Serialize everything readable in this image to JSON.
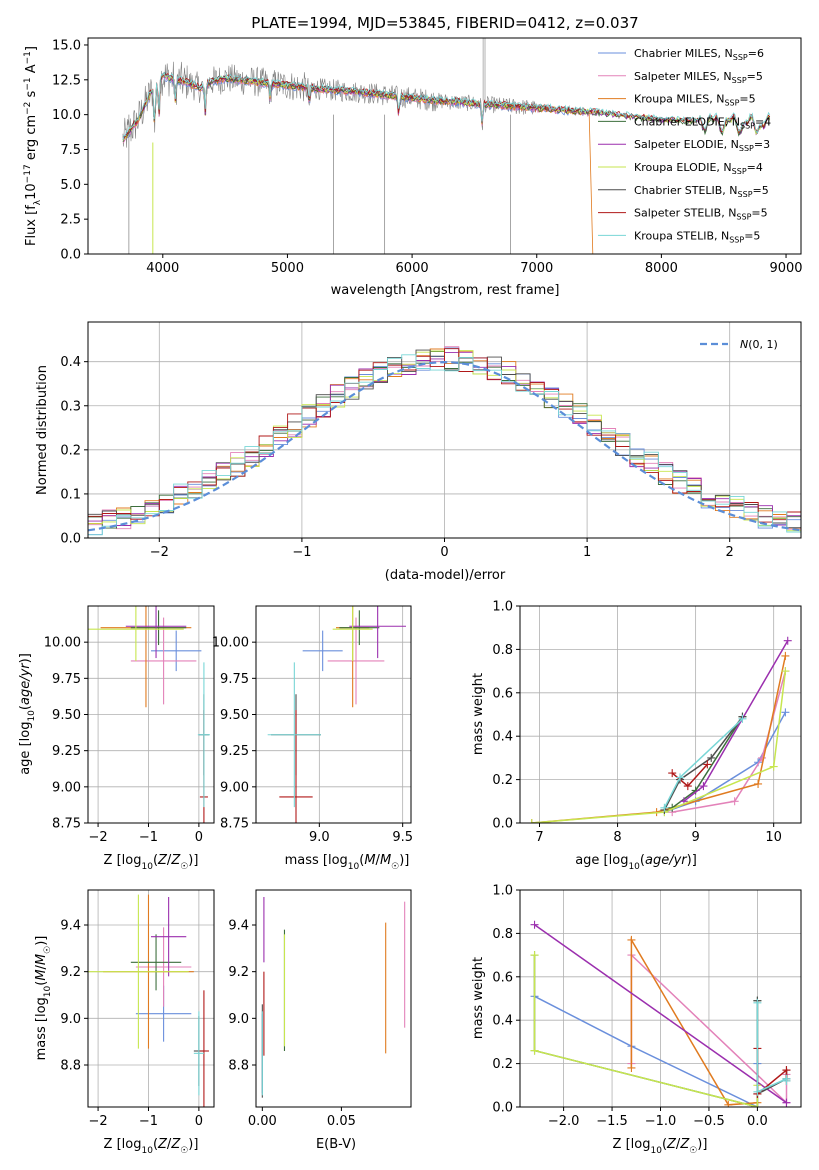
{
  "figure": {
    "title": "PLATE=1994, MJD=53845, FIBERID=0412, z=0.037"
  },
  "colors": {
    "Chabrier MILES": "#6a8fdc",
    "Salpeter MILES": "#e382b9",
    "Kroupa MILES": "#e07b20",
    "Chabrier ELODIE": "#3c6e3c",
    "Salpeter ELODIE": "#9b2fae",
    "Kroupa ELODIE": "#c7e64f",
    "Chabrier STELIB": "#4d4d4d",
    "Salpeter STELIB": "#b01818",
    "Kroupa STELIB": "#78d6d6"
  },
  "chart_data": [
    {
      "id": "spectrum",
      "type": "line",
      "title": "PLATE=1994, MJD=53845, FIBERID=0412, z=0.037",
      "xlabel": "wavelength [Angstrom, rest frame]",
      "ylabel": "Flux [f_λ10^-17 erg cm^-2 s^-1 A^-1]",
      "xlim": [
        3400,
        9120
      ],
      "ylim": [
        0,
        15.5
      ],
      "xticks": [
        4000,
        5000,
        6000,
        7000,
        8000,
        9000
      ],
      "yticks": [
        0.0,
        2.5,
        5.0,
        7.5,
        10.0,
        12.5,
        15.0
      ],
      "ytick_labels": [
        "0.0",
        "2.5",
        "5.0",
        "7.5",
        "10.0",
        "12.5",
        "15.0"
      ],
      "legend": "top-right",
      "legend_entries": [
        "Chabrier MILES, N_SSP=6",
        "Salpeter MILES, N_SSP=5",
        "Kroupa MILES, N_SSP=5",
        "Chabrier ELODIE, N_SSP=4",
        "Salpeter ELODIE, N_SSP=3",
        "Kroupa ELODIE, N_SSP=4",
        "Chabrier STELIB, N_SSP=5",
        "Salpeter STELIB, N_SSP=5",
        "Kroupa STELIB, N_SSP=5"
      ],
      "legend_labels": [
        {
          "pre": "Chabrier MILES, N",
          "sub": "SSP",
          "post": "=6"
        },
        {
          "pre": "Salpeter MILES, N",
          "sub": "SSP",
          "post": "=5"
        },
        {
          "pre": "Kroupa MILES, N",
          "sub": "SSP",
          "post": "=5"
        },
        {
          "pre": "Chabrier ELODIE, N",
          "sub": "SSP",
          "post": "=4"
        },
        {
          "pre": "Salpeter ELODIE, N",
          "sub": "SSP",
          "post": "=3"
        },
        {
          "pre": "Kroupa ELODIE, N",
          "sub": "SSP",
          "post": "=4"
        },
        {
          "pre": "Chabrier STELIB, N",
          "sub": "SSP",
          "post": "=5"
        },
        {
          "pre": "Salpeter STELIB, N",
          "sub": "SSP",
          "post": "=5"
        },
        {
          "pre": "Kroupa STELIB, N",
          "sub": "SSP",
          "post": "=5"
        }
      ],
      "data_x": [
        3680,
        3800,
        3900,
        4000,
        4100,
        4200,
        4300,
        4400,
        4500,
        4700,
        5000,
        5300,
        5600,
        5900,
        6200,
        6500,
        6800,
        7100,
        7400,
        7700,
        8000,
        8300,
        8600,
        8870
      ],
      "data_y": [
        8.2,
        9.6,
        11.5,
        12.8,
        12.5,
        12.3,
        11.9,
        12.4,
        12.6,
        12.4,
        12.1,
        11.8,
        11.6,
        11.3,
        11.0,
        10.8,
        10.6,
        10.4,
        10.2,
        9.9,
        9.6,
        9.5,
        9.3,
        9.2
      ]
    },
    {
      "id": "residuals",
      "type": "line",
      "xlabel": "(data-model)/error",
      "ylabel": "Normed distribution",
      "xlim": [
        -2.5,
        2.5
      ],
      "ylim": [
        0,
        0.49
      ],
      "xticks": [
        -2,
        -1,
        0,
        1,
        2
      ],
      "xtick_labels": [
        "−2",
        "−1",
        "0",
        "1",
        "2"
      ],
      "yticks": [
        0.0,
        0.1,
        0.2,
        0.3,
        0.4
      ],
      "ytick_labels": [
        "0.0",
        "0.1",
        "0.2",
        "0.3",
        "0.4"
      ],
      "legend": "top-right",
      "legend_label": "N(0,1)",
      "series_model": "normal pdf, mean 0, sigma 1"
    },
    {
      "id": "age_vs_Z",
      "type": "scatter",
      "xlabel": "Z [log10(Z/Z☉)]",
      "ylabel": "age [log10(age/yr)]",
      "xlim": [
        -2.2,
        0.3
      ],
      "ylim": [
        8.75,
        10.25
      ],
      "xticks": [
        -2,
        -1,
        0
      ],
      "xtick_labels": [
        "−2",
        "−1",
        "0"
      ],
      "yticks": [
        8.75,
        9.0,
        9.25,
        9.5,
        9.75,
        10.0
      ],
      "ytick_labels": [
        "8.75",
        "9.00",
        "9.25",
        "9.50",
        "9.75",
        "10.00"
      ],
      "points": [
        {
          "m": "Chabrier MILES",
          "x": -0.45,
          "xerr": 0.5,
          "y": 9.94,
          "yerr": 0.14
        },
        {
          "m": "Salpeter MILES",
          "x": -0.7,
          "xerr": 0.65,
          "y": 9.87,
          "yerr": 0.3
        },
        {
          "m": "Kroupa MILES",
          "x": -1.05,
          "xerr": 0.9,
          "y": 10.1,
          "yerr": 0.55
        },
        {
          "m": "Chabrier ELODIE",
          "x": -0.8,
          "xerr": 0.55,
          "y": 10.1,
          "yerr": 0.12
        },
        {
          "m": "Salpeter ELODIE",
          "x": -0.85,
          "xerr": 0.6,
          "y": 10.11,
          "yerr": 0.22
        },
        {
          "m": "Kroupa ELODIE",
          "x": -1.25,
          "xerr": 0.95,
          "y": 10.09,
          "yerr": 0.22
        },
        {
          "m": "Chabrier STELIB",
          "x": 0.1,
          "xerr": 0.1,
          "y": 9.36,
          "yerr": 0.28
        },
        {
          "m": "Salpeter STELIB",
          "x": 0.1,
          "xerr": 0.08,
          "y": 8.93,
          "yerr": 0.6
        },
        {
          "m": "Kroupa STELIB",
          "x": 0.1,
          "xerr": 0.12,
          "y": 9.36,
          "yerr": 0.5
        }
      ]
    },
    {
      "id": "age_vs_mass",
      "type": "scatter",
      "xlabel": "mass [log10(M/M☉)]",
      "ylabel": "",
      "xlim": [
        8.62,
        9.55
      ],
      "ylim": [
        8.75,
        10.25
      ],
      "xticks": [
        9.0,
        9.5
      ],
      "xtick_labels": [
        "9.0",
        "9.5"
      ],
      "yticks": [
        8.75,
        9.0,
        9.25,
        9.5,
        9.75,
        10.0
      ],
      "ytick_labels": [
        "8.75",
        "9.00",
        "9.25",
        "9.50",
        "9.75",
        "10.00"
      ],
      "points": [
        {
          "m": "Chabrier MILES",
          "x": 9.02,
          "xerr": 0.12,
          "y": 9.94,
          "yerr": 0.14
        },
        {
          "m": "Salpeter MILES",
          "x": 9.22,
          "xerr": 0.17,
          "y": 9.87,
          "yerr": 0.3
        },
        {
          "m": "Kroupa MILES",
          "x": 9.2,
          "xerr": 0.1,
          "y": 10.1,
          "yerr": 0.55
        },
        {
          "m": "Chabrier ELODIE",
          "x": 9.24,
          "xerr": 0.12,
          "y": 10.1,
          "yerr": 0.12
        },
        {
          "m": "Salpeter ELODIE",
          "x": 9.35,
          "xerr": 0.17,
          "y": 10.11,
          "yerr": 0.22
        },
        {
          "m": "Kroupa ELODIE",
          "x": 9.2,
          "xerr": 0.12,
          "y": 10.09,
          "yerr": 0.22
        },
        {
          "m": "Chabrier STELIB",
          "x": 8.86,
          "xerr": 0.15,
          "y": 9.36,
          "yerr": 0.28
        },
        {
          "m": "Salpeter STELIB",
          "x": 8.86,
          "xerr": 0.1,
          "y": 8.93,
          "yerr": 0.6
        },
        {
          "m": "Kroupa STELIB",
          "x": 8.85,
          "xerr": 0.16,
          "y": 9.36,
          "yerr": 0.5
        }
      ]
    },
    {
      "id": "weight_vs_age",
      "type": "line",
      "xlabel": "age [log10(age/yr)]",
      "ylabel": "mass weight",
      "xlim": [
        6.75,
        10.35
      ],
      "ylim": [
        0,
        1.0
      ],
      "xticks": [
        7,
        8,
        9,
        10
      ],
      "yticks": [
        0.0,
        0.2,
        0.4,
        0.6,
        0.8,
        1.0
      ],
      "ytick_labels": [
        "0.0",
        "0.2",
        "0.4",
        "0.6",
        "0.8",
        "1.0"
      ],
      "series": [
        {
          "m": "Chabrier MILES",
          "x": [
            8.6,
            9.0,
            9.8,
            10.15
          ],
          "y": [
            0.05,
            0.1,
            0.28,
            0.51
          ]
        },
        {
          "m": "Salpeter MILES",
          "x": [
            8.7,
            9.5,
            9.85,
            10.15
          ],
          "y": [
            0.05,
            0.1,
            0.3,
            0.7
          ]
        },
        {
          "m": "Kroupa MILES",
          "x": [
            6.9,
            8.5,
            9.8,
            10.15
          ],
          "y": [
            0.0,
            0.05,
            0.18,
            0.77
          ]
        },
        {
          "m": "Chabrier ELODIE",
          "x": [
            8.7,
            9.0,
            9.6
          ],
          "y": [
            0.07,
            0.15,
            0.49
          ]
        },
        {
          "m": "Salpeter ELODIE",
          "x": [
            8.85,
            9.1,
            10.18
          ],
          "y": [
            0.1,
            0.17,
            0.84
          ]
        },
        {
          "m": "Kroupa ELODIE",
          "x": [
            6.9,
            8.6,
            10.0,
            10.15
          ],
          "y": [
            0.0,
            0.05,
            0.26,
            0.7
          ]
        },
        {
          "m": "Chabrier STELIB",
          "x": [
            8.6,
            8.8,
            9.2,
            9.6
          ],
          "y": [
            0.06,
            0.2,
            0.3,
            0.49
          ]
        },
        {
          "m": "Salpeter STELIB",
          "x": [
            8.7,
            8.9,
            9.15
          ],
          "y": [
            0.23,
            0.17,
            0.27
          ]
        },
        {
          "m": "Kroupa STELIB",
          "x": [
            8.6,
            8.8,
            9.6
          ],
          "y": [
            0.07,
            0.21,
            0.48
          ]
        }
      ]
    },
    {
      "id": "mass_vs_Z",
      "type": "scatter",
      "xlabel": "Z [log10(Z/Z☉)]",
      "ylabel": "mass [log10(M/M☉)]",
      "xlim": [
        -2.2,
        0.3
      ],
      "ylim": [
        8.62,
        9.55
      ],
      "xticks": [
        -2,
        -1,
        0
      ],
      "xtick_labels": [
        "−2",
        "−1",
        "0"
      ],
      "yticks": [
        8.8,
        9.0,
        9.2,
        9.4
      ],
      "ytick_labels": [
        "8.8",
        "9.0",
        "9.2",
        "9.4"
      ],
      "points": [
        {
          "m": "Chabrier MILES",
          "x": -0.7,
          "xerr": 0.55,
          "y": 9.02,
          "yerr": 0.12
        },
        {
          "m": "Salpeter MILES",
          "x": -0.7,
          "xerr": 0.55,
          "y": 9.22,
          "yerr": 0.17
        },
        {
          "m": "Kroupa MILES",
          "x": -1.0,
          "xerr": 0.9,
          "y": 9.2,
          "yerr": 0.33
        },
        {
          "m": "Chabrier ELODIE",
          "x": -0.85,
          "xerr": 0.5,
          "y": 9.24,
          "yerr": 0.12
        },
        {
          "m": "Salpeter ELODIE",
          "x": -0.6,
          "xerr": 0.35,
          "y": 9.35,
          "yerr": 0.17
        },
        {
          "m": "Kroupa ELODIE",
          "x": -1.2,
          "xerr": 1.0,
          "y": 9.2,
          "yerr": 0.33
        },
        {
          "m": "Chabrier STELIB",
          "x": 0.0,
          "xerr": 0.1,
          "y": 8.86,
          "yerr": 0.15
        },
        {
          "m": "Salpeter STELIB",
          "x": 0.1,
          "xerr": 0.1,
          "y": 8.86,
          "yerr": 0.26
        },
        {
          "m": "Kroupa STELIB",
          "x": 0.0,
          "xerr": 0.1,
          "y": 8.85,
          "yerr": 0.18
        }
      ]
    },
    {
      "id": "mass_vs_EBV",
      "type": "scatter",
      "xlabel": "E(B-V)",
      "ylabel": "",
      "xlim": [
        -0.004,
        0.094
      ],
      "ylim": [
        8.62,
        9.55
      ],
      "xticks": [
        0.0,
        0.05
      ],
      "xtick_labels": [
        "0.00",
        "0.05"
      ],
      "yticks": [
        8.8,
        9.0,
        9.2,
        9.4
      ],
      "ytick_labels": [
        "8.8",
        "9.0",
        "9.2",
        "9.4"
      ],
      "points": [
        {
          "m": "Chabrier MILES",
          "x": 0.0,
          "y": 8.85,
          "yerr": 0.17
        },
        {
          "m": "Salpeter MILES",
          "x": 0.09,
          "y": 9.23,
          "yerr": 0.27
        },
        {
          "m": "Kroupa MILES",
          "x": 0.078,
          "y": 9.13,
          "yerr": 0.28
        },
        {
          "m": "Chabrier ELODIE",
          "x": 0.014,
          "y": 9.12,
          "yerr": 0.26
        },
        {
          "m": "Salpeter ELODIE",
          "x": 0.001,
          "y": 9.38,
          "yerr": 0.14
        },
        {
          "m": "Kroupa ELODIE",
          "x": 0.014,
          "y": 9.12,
          "yerr": 0.24
        },
        {
          "m": "Chabrier STELIB",
          "x": 0.0,
          "y": 8.86,
          "yerr": 0.2
        },
        {
          "m": "Salpeter STELIB",
          "x": 0.001,
          "y": 9.02,
          "yerr": 0.18
        },
        {
          "m": "Kroupa STELIB",
          "x": 0.0,
          "y": 8.85,
          "yerr": 0.18
        }
      ]
    },
    {
      "id": "weight_vs_Z",
      "type": "line",
      "xlabel": "Z [log10(Z/Z☉)]",
      "ylabel": "mass weight",
      "xlim": [
        -2.45,
        0.45
      ],
      "ylim": [
        0,
        1.0
      ],
      "xticks": [
        -2.0,
        -1.5,
        -1.0,
        -0.5,
        0.0
      ],
      "xtick_labels": [
        "−2.0",
        "−1.5",
        "−1.0",
        "−0.5",
        "0.0"
      ],
      "yticks": [
        0.0,
        0.2,
        0.4,
        0.6,
        0.8,
        1.0
      ],
      "ytick_labels": [
        "0.0",
        "0.2",
        "0.4",
        "0.6",
        "0.8",
        "1.0"
      ],
      "series": [
        {
          "m": "Chabrier MILES",
          "x": [
            -2.3,
            -1.3,
            0.0,
            0.0
          ],
          "y": [
            0.51,
            0.28,
            0.0,
            0.2
          ]
        },
        {
          "m": "Salpeter MILES",
          "x": [
            -1.3,
            -1.3,
            0.3,
            0.3
          ],
          "y": [
            0.2,
            0.7,
            0.02,
            0.15
          ]
        },
        {
          "m": "Kroupa MILES",
          "x": [
            -1.3,
            -1.3,
            -0.3,
            0.0
          ],
          "y": [
            0.18,
            0.77,
            0.01,
            0.02
          ]
        },
        {
          "m": "Chabrier ELODIE",
          "x": [
            -2.3,
            -2.3,
            0.0,
            0.0
          ],
          "y": [
            0.7,
            0.26,
            0.0,
            0.49
          ]
        },
        {
          "m": "Salpeter ELODIE",
          "x": [
            -2.3,
            0.3
          ],
          "y": [
            0.84,
            0.02
          ]
        },
        {
          "m": "Kroupa ELODIE",
          "x": [
            -2.3,
            -2.3,
            0.0,
            0.0
          ],
          "y": [
            0.7,
            0.26,
            0.0,
            0.1
          ]
        },
        {
          "m": "Chabrier STELIB",
          "x": [
            0.0,
            0.0,
            0.3,
            0.3
          ],
          "y": [
            0.49,
            0.06,
            0.13,
            0.17
          ]
        },
        {
          "m": "Salpeter STELIB",
          "x": [
            0.0,
            0.0,
            0.3,
            0.3
          ],
          "y": [
            0.27,
            0.06,
            0.17,
            0.12
          ]
        },
        {
          "m": "Kroupa STELIB",
          "x": [
            0.0,
            0.0,
            0.3,
            0.3
          ],
          "y": [
            0.48,
            0.07,
            0.13,
            0.12
          ]
        }
      ]
    }
  ]
}
